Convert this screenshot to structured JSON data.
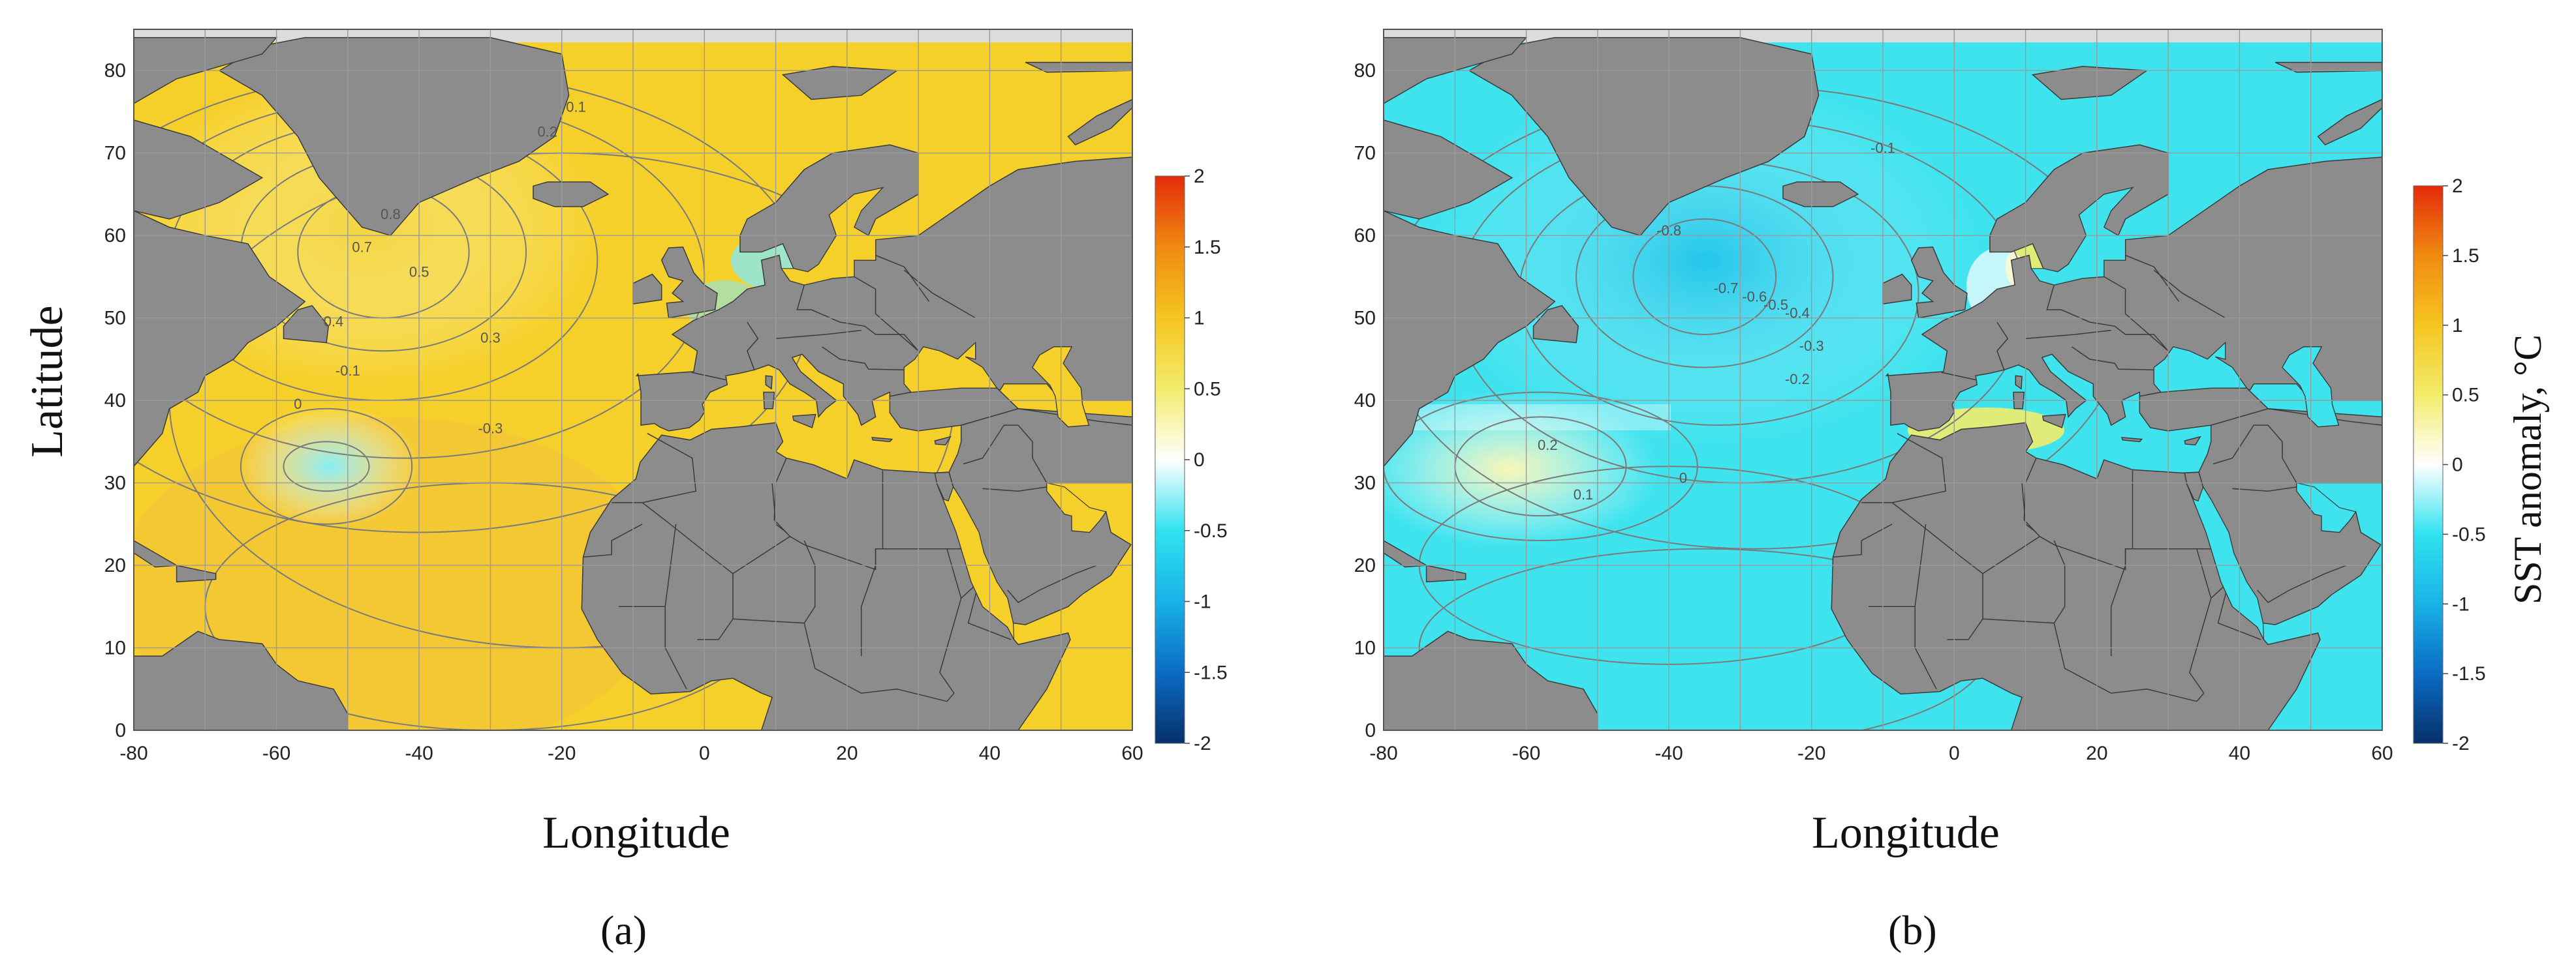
{
  "colors": {
    "land": "#8c8c8c",
    "border": "#3a3a3a",
    "grid": "#9a9a9a",
    "contour": "#7a7a7a",
    "seaice": "#dcdcdc"
  },
  "colorbar": {
    "ticks": [
      "2",
      "1.5",
      "1",
      "0.5",
      "0",
      "-0.5",
      "-1",
      "-1.5",
      "-2"
    ],
    "range": [
      -2,
      2
    ],
    "stops": [
      "#08306b",
      "#0a6cc4",
      "#19b2e6",
      "#30e2f0",
      "#ffffff",
      "#f2ec6a",
      "#f5c520",
      "#f08a10",
      "#e52a0a"
    ],
    "title": "SST anomaly, °C"
  },
  "axes": {
    "x_ticks": [
      "-80",
      "-60",
      "-40",
      "-20",
      "0",
      "20",
      "40",
      "60"
    ],
    "y_ticks": [
      "0",
      "10",
      "20",
      "30",
      "40",
      "50",
      "60",
      "70",
      "80"
    ],
    "xlim": [
      -80,
      60
    ],
    "ylim": [
      0,
      85
    ],
    "x_label": "Longitude",
    "y_label": "Latitude"
  },
  "panels": [
    {
      "label": "(a)",
      "sea_color": "#f6d02a",
      "contour_labels": [
        "0.8",
        "0.7",
        "0.5",
        "0.4",
        "0.3",
        "0.2",
        "0.1",
        "0",
        "-0.1",
        "-0.3"
      ],
      "anomaly_field": [
        {
          "lon": -45,
          "lat": 58,
          "value": 0.8
        },
        {
          "lon": -53,
          "lat": 32,
          "value": -0.3
        },
        {
          "lon": -40,
          "lat": 15,
          "value": 0.3
        },
        {
          "lon": 10,
          "lat": 58,
          "value": -0.3
        },
        {
          "lon": 40,
          "lat": 44,
          "value": 0.3
        }
      ]
    },
    {
      "label": "(b)",
      "sea_color": "#3ee3ee",
      "contour_labels": [
        "-0.8",
        "-0.7",
        "-0.6",
        "-0.5",
        "-0.4",
        "-0.3",
        "-0.2",
        "-0.1",
        "0",
        "0.1",
        "0.2"
      ],
      "anomaly_field": [
        {
          "lon": -35,
          "lat": 55,
          "value": -0.8
        },
        {
          "lon": -58,
          "lat": 32,
          "value": 0.2
        },
        {
          "lon": 20,
          "lat": 58,
          "value": 0.2
        },
        {
          "lon": 12,
          "lat": 38,
          "value": 0.2
        }
      ]
    }
  ]
}
